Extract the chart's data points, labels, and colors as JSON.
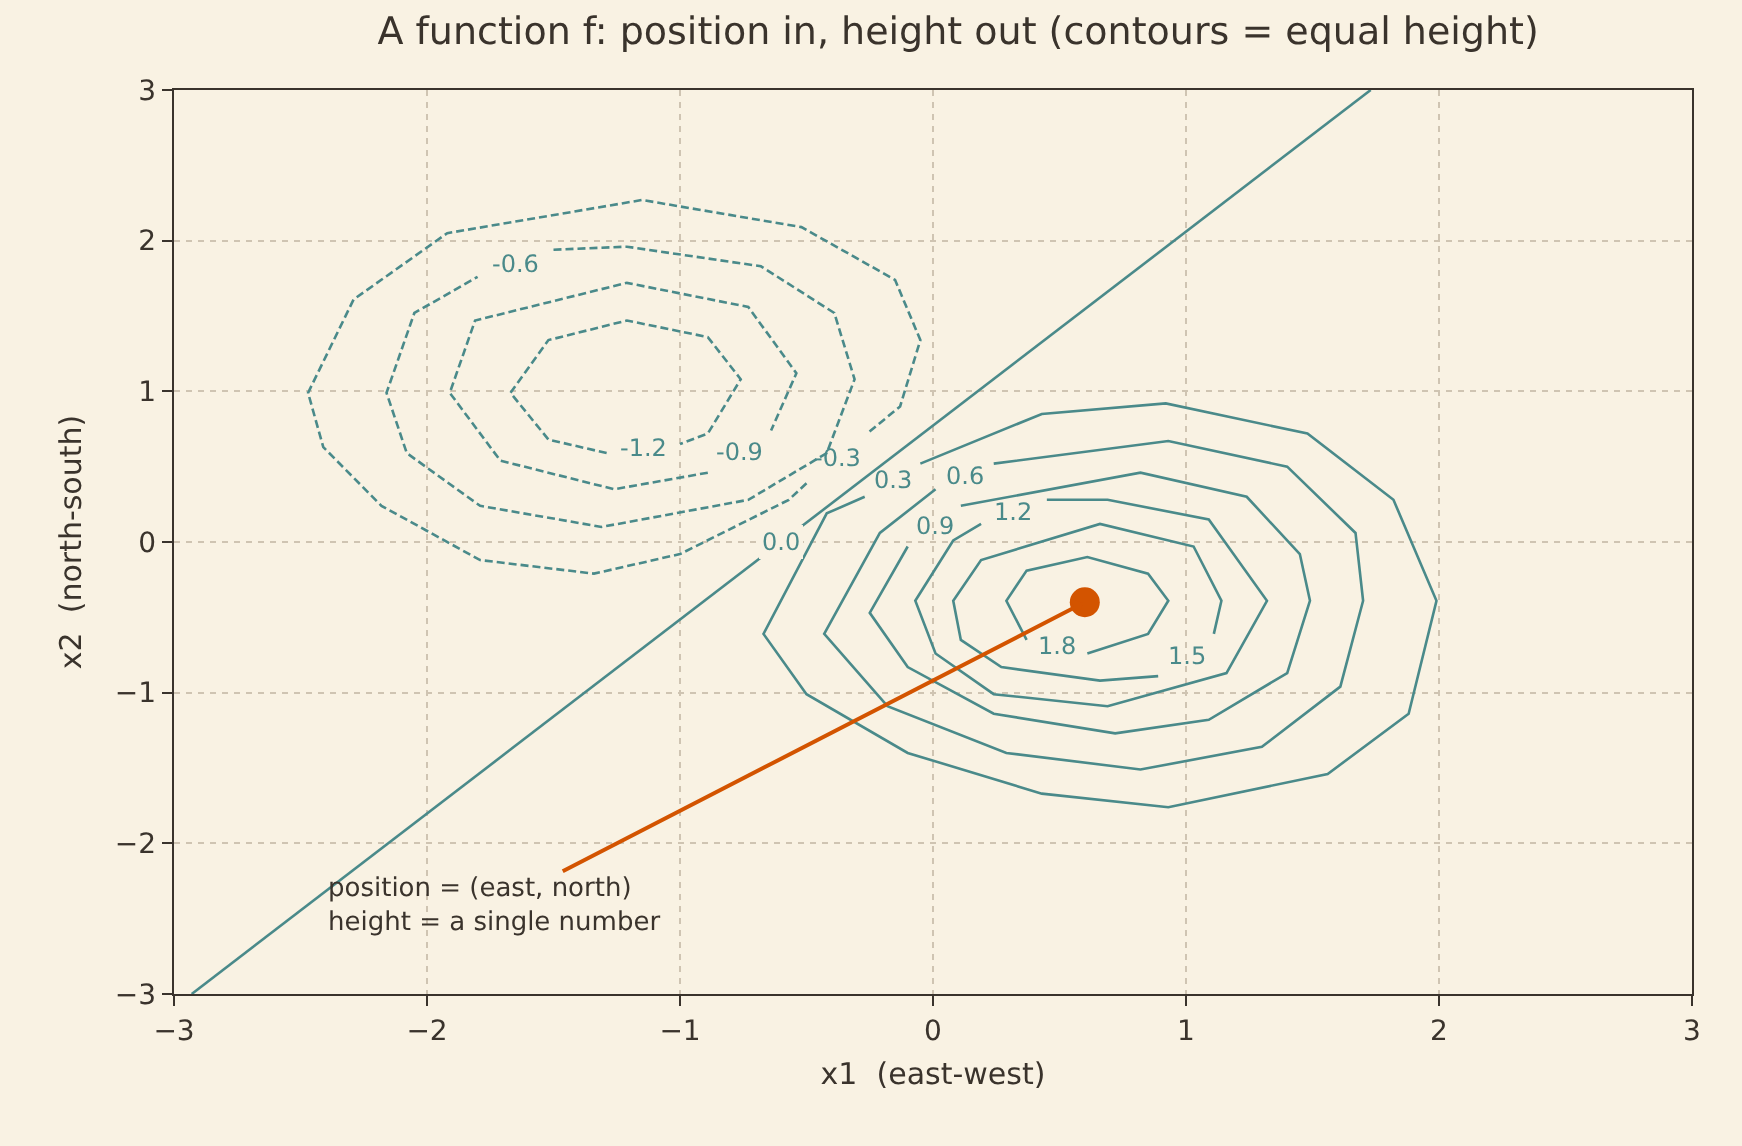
{
  "chart_data": {
    "type": "line",
    "title": "A function f: position in, height out (contours = equal height)",
    "xlabel": "x1  (east-west)",
    "ylabel": "x2  (north-south)",
    "series": [
      {
        "name": "0.0",
        "color": "#4a8a8a",
        "line_style": "solid",
        "x": [
          -2.93,
          1.73
        ],
        "values": [
          -3,
          3
        ]
      },
      {
        "name": "-0.3",
        "color": "#4a8a8a",
        "line_style": "dashed",
        "x": [
          -0.5,
          -0.57,
          -1.0,
          -1.34,
          -1.79,
          -2.18,
          -2.41,
          -2.47,
          -2.29,
          -1.92,
          -1.15,
          -0.52,
          -0.15,
          -0.05,
          -0.13,
          -0.26
        ],
        "values": [
          0.39,
          0.28,
          -0.08,
          -0.21,
          -0.12,
          0.24,
          0.63,
          0.99,
          1.61,
          2.05,
          2.27,
          2.09,
          1.74,
          1.34,
          0.9,
          0.72
        ]
      },
      {
        "name": "-0.6",
        "color": "#4a8a8a",
        "line_style": "dashed",
        "x": [
          -1.5,
          -1.21,
          -0.68,
          -0.39,
          -0.31,
          -0.42,
          -0.73,
          -1.31,
          -1.79,
          -2.08,
          -2.16,
          -2.05,
          -1.8
        ],
        "values": [
          1.94,
          1.96,
          1.83,
          1.52,
          1.08,
          0.59,
          0.28,
          0.1,
          0.24,
          0.59,
          0.99,
          1.52,
          1.76
        ]
      },
      {
        "name": "-0.9",
        "color": "#4a8a8a",
        "line_style": "dashed",
        "x": [
          -0.89,
          -1.26,
          -1.71,
          -1.91,
          -1.81,
          -1.21,
          -0.73,
          -0.54,
          -0.64
        ],
        "values": [
          0.46,
          0.35,
          0.54,
          0.99,
          1.47,
          1.72,
          1.56,
          1.12,
          0.74
        ]
      },
      {
        "name": "-1.2",
        "color": "#4a8a8a",
        "line_style": "dashed",
        "x": [
          -1.29,
          -1.52,
          -1.67,
          -1.52,
          -1.21,
          -0.89,
          -0.76,
          -0.89,
          -1.0
        ],
        "values": [
          0.59,
          0.68,
          0.99,
          1.34,
          1.47,
          1.36,
          1.08,
          0.72,
          0.65
        ]
      },
      {
        "name": "0.3",
        "color": "#4a8a8a",
        "line_style": "solid",
        "x": [
          -0.05,
          0.43,
          0.92,
          1.48,
          1.82,
          1.99,
          1.88,
          1.56,
          0.93,
          0.43,
          -0.1,
          -0.5,
          -0.67,
          -0.42,
          -0.27
        ],
        "values": [
          0.52,
          0.85,
          0.92,
          0.72,
          0.28,
          -0.39,
          -1.14,
          -1.54,
          -1.76,
          -1.67,
          -1.4,
          -1.01,
          -0.61,
          0.19,
          0.3
        ]
      },
      {
        "name": "0.6",
        "color": "#4a8a8a",
        "line_style": "solid",
        "x": [
          0.24,
          0.93,
          1.4,
          1.67,
          1.7,
          1.61,
          1.3,
          0.82,
          0.29,
          -0.18,
          -0.43,
          -0.21,
          0.01
        ],
        "values": [
          0.52,
          0.67,
          0.5,
          0.06,
          -0.39,
          -0.96,
          -1.36,
          -1.51,
          -1.4,
          -1.09,
          -0.61,
          0.06,
          0.35
        ]
      },
      {
        "name": "0.9",
        "color": "#4a8a8a",
        "line_style": "solid",
        "x": [
          0.11,
          0.82,
          1.24,
          1.45,
          1.49,
          1.4,
          1.09,
          0.72,
          0.24,
          -0.1,
          -0.25,
          -0.1
        ],
        "values": [
          0.24,
          0.46,
          0.3,
          -0.08,
          -0.39,
          -0.87,
          -1.18,
          -1.27,
          -1.14,
          -0.83,
          -0.47,
          -0.03
        ]
      },
      {
        "name": "1.2",
        "color": "#4a8a8a",
        "line_style": "solid",
        "x": [
          0.45,
          0.69,
          1.09,
          1.32,
          1.16,
          0.69,
          0.24,
          0.01,
          -0.07,
          0.08,
          0.19
        ],
        "values": [
          0.28,
          0.28,
          0.15,
          -0.39,
          -0.87,
          -1.09,
          -1.01,
          -0.74,
          -0.39,
          0.01,
          0.12
        ]
      },
      {
        "name": "1.5",
        "color": "#4a8a8a",
        "line_style": "solid",
        "x": [
          0.89,
          0.66,
          0.27,
          0.11,
          0.08,
          0.19,
          0.66,
          1.03,
          1.14,
          1.11
        ],
        "values": [
          -0.89,
          -0.92,
          -0.83,
          -0.65,
          -0.39,
          -0.12,
          0.12,
          -0.03,
          -0.39,
          -0.61
        ]
      },
      {
        "name": "1.8",
        "color": "#4a8a8a",
        "line_style": "solid",
        "x": [
          0.37,
          0.29,
          0.37,
          0.61,
          0.85,
          0.93,
          0.85,
          0.61
        ],
        "values": [
          -0.65,
          -0.39,
          -0.19,
          -0.1,
          -0.21,
          -0.39,
          -0.61,
          -0.74
        ]
      },
      {
        "type": "scatter",
        "color": "#d35400",
        "marker": "circle",
        "x": [
          0.6
        ],
        "values": [
          -0.4
        ]
      }
    ],
    "annotations": [
      {
        "text": "position = (east, north)\nheight = a single number",
        "x": 0.6,
        "y": -0.4
      }
    ],
    "xlim": [
      -3,
      3
    ],
    "ylim": [
      -3,
      3
    ],
    "xticks": [
      {
        "value": -3,
        "label": "−3"
      },
      {
        "value": -2,
        "label": "−2"
      },
      {
        "value": -1,
        "label": "−1"
      },
      0,
      1,
      2,
      3
    ],
    "yticks": [
      {
        "value": -3,
        "label": "−3"
      },
      {
        "value": -2,
        "label": "−2"
      },
      {
        "value": -1,
        "label": "−1"
      },
      0,
      1,
      2,
      3
    ],
    "grid": true,
    "legend": false
  }
}
